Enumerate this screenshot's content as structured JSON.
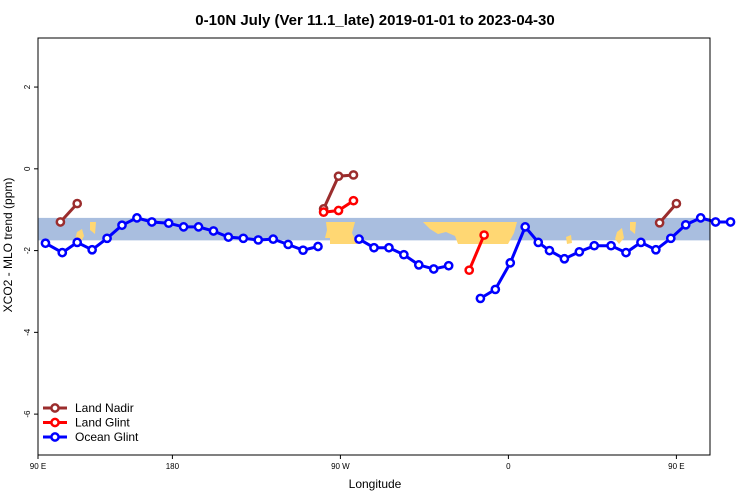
{
  "chart_data": {
    "type": "line",
    "title": "0-10N July (Ver 11.1_late)   2019-01-01 to 2023-04-30",
    "xlabel": "Longitude",
    "ylabel": "XCO2 - MLO trend (ppm)",
    "xlim": [
      90,
      450
    ],
    "ylim": [
      -7,
      3.2
    ],
    "x_ticks": [
      {
        "value": 90,
        "label": "90 E"
      },
      {
        "value": 162,
        "label": "180"
      },
      {
        "value": 252,
        "label": "90 W"
      },
      {
        "value": 342,
        "label": "0"
      },
      {
        "value": 432,
        "label": "90 E"
      },
      {
        "value": 522,
        "label": "180"
      }
    ],
    "y_ticks": [
      {
        "value": 2,
        "label": "2"
      },
      {
        "value": 0,
        "label": "0"
      },
      {
        "value": -2,
        "label": "-2"
      },
      {
        "value": -4,
        "label": "-4"
      },
      {
        "value": -6,
        "label": "-6"
      }
    ],
    "latitude_band": {
      "ymin": -1.75,
      "ymax": -1.2
    },
    "legend_position": "bottom-left",
    "series": [
      {
        "name": "Land Nadir",
        "color": "#9b2d2d",
        "segments": [
          [
            [
              102,
              -1.3
            ],
            [
              111,
              -0.85
            ]
          ],
          [
            [
              243,
              -0.98
            ],
            [
              251,
              -0.18
            ],
            [
              259,
              -0.15
            ]
          ],
          [
            [
              423,
              -1.32
            ],
            [
              432,
              -0.85
            ]
          ]
        ]
      },
      {
        "name": "Land Glint",
        "color": "#ff0000",
        "segments": [
          [
            [
              243,
              -1.06
            ],
            [
              251,
              -1.02
            ],
            [
              259,
              -0.78
            ]
          ],
          [
            [
              321,
              -2.48
            ],
            [
              329,
              -1.62
            ]
          ]
        ]
      },
      {
        "name": "Ocean Glint",
        "color": "#0000ff",
        "segments": [
          [
            [
              94,
              -1.82
            ],
            [
              103,
              -2.05
            ],
            [
              111,
              -1.8
            ],
            [
              119,
              -1.98
            ],
            [
              127,
              -1.7
            ],
            [
              135,
              -1.38
            ],
            [
              143,
              -1.2
            ],
            [
              151,
              -1.3
            ],
            [
              160,
              -1.33
            ],
            [
              168,
              -1.42
            ],
            [
              176,
              -1.42
            ],
            [
              184,
              -1.52
            ],
            [
              192,
              -1.67
            ],
            [
              200,
              -1.7
            ],
            [
              208,
              -1.74
            ],
            [
              216,
              -1.72
            ],
            [
              224,
              -1.85
            ],
            [
              232,
              -1.99
            ],
            [
              240,
              -1.9
            ]
          ],
          [
            [
              262,
              -1.72
            ],
            [
              270,
              -1.93
            ],
            [
              278,
              -1.93
            ],
            [
              286,
              -2.1
            ],
            [
              294,
              -2.35
            ],
            [
              302,
              -2.45
            ],
            [
              310,
              -2.37
            ]
          ],
          [
            [
              327,
              -3.17
            ],
            [
              335,
              -2.95
            ],
            [
              343,
              -2.3
            ],
            [
              351,
              -1.42
            ],
            [
              358,
              -1.8
            ],
            [
              364,
              -2.0
            ],
            [
              372,
              -2.2
            ],
            [
              380,
              -2.03
            ],
            [
              388,
              -1.88
            ],
            [
              397,
              -1.88
            ],
            [
              405,
              -2.05
            ],
            [
              413,
              -1.8
            ],
            [
              421,
              -1.98
            ],
            [
              429,
              -1.7
            ],
            [
              437,
              -1.37
            ],
            [
              445,
              -1.2
            ],
            [
              453,
              -1.3
            ],
            [
              461,
              -1.3
            ]
          ]
        ]
      }
    ]
  },
  "colors": {
    "band": "#a9bedf",
    "land": "#ffd773",
    "axis": "#000000"
  }
}
